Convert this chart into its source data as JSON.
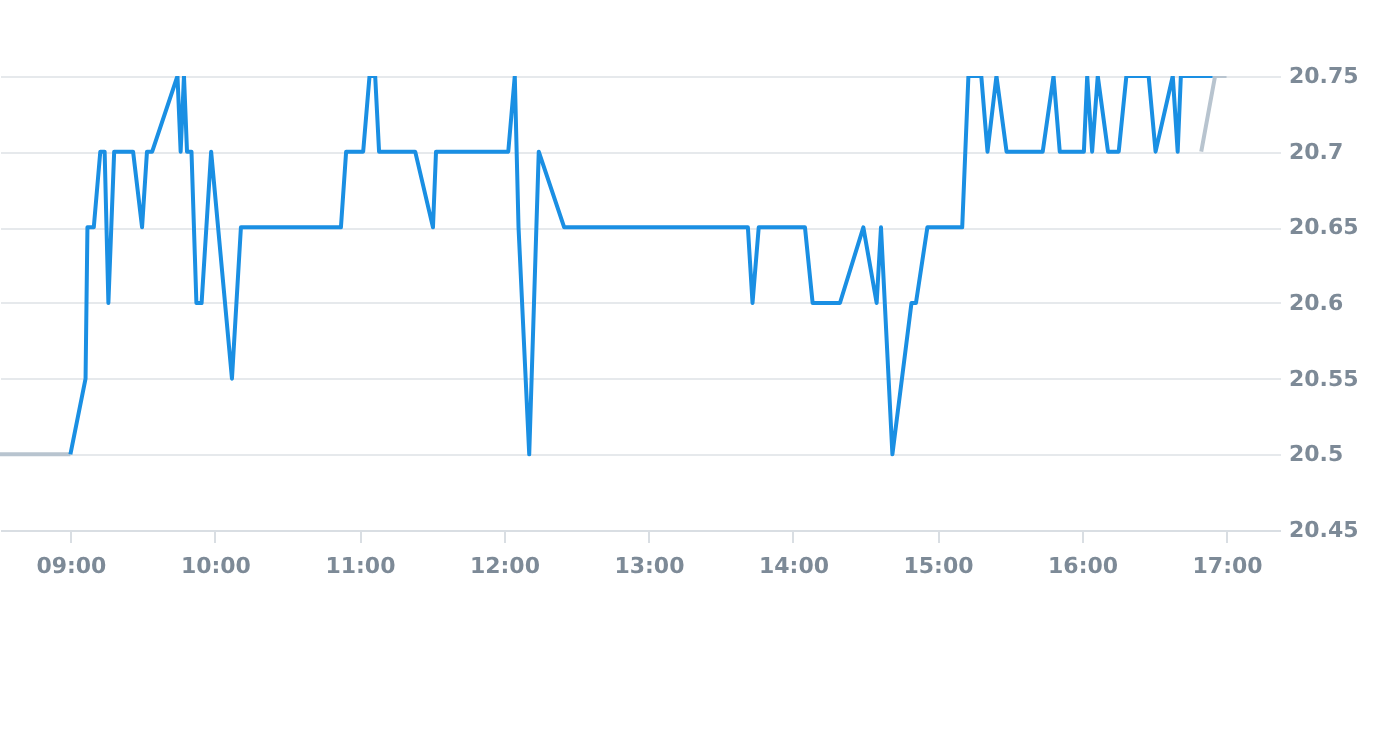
{
  "chart_data": {
    "type": "line",
    "xlim": [
      8.513,
      17.37
    ],
    "ylim": [
      20.45,
      20.75
    ],
    "xticks": [
      {
        "value": 9,
        "label": "09:00"
      },
      {
        "value": 10,
        "label": "10:00"
      },
      {
        "value": 11,
        "label": "11:00"
      },
      {
        "value": 12,
        "label": "12:00"
      },
      {
        "value": 13,
        "label": "13:00"
      },
      {
        "value": 14,
        "label": "14:00"
      },
      {
        "value": 15,
        "label": "15:00"
      },
      {
        "value": 16,
        "label": "16:00"
      },
      {
        "value": 17,
        "label": "17:00"
      }
    ],
    "yticks": [
      20.45,
      20.5,
      20.55,
      20.6,
      20.65,
      20.7,
      20.75
    ],
    "grid": "y",
    "legend": false,
    "marker": "none",
    "line_style": "solid",
    "series": [
      {
        "color": "#b8c4cf",
        "x": [
          8.513,
          9.0
        ],
        "values": [
          20.5,
          20.5
        ]
      },
      {
        "color": "#1a8fe3",
        "x": [
          9.0,
          9.105,
          9.118,
          9.162,
          9.207,
          9.237,
          9.263,
          9.303,
          9.434,
          9.496,
          9.53,
          9.566,
          9.741,
          9.763,
          9.786,
          9.807,
          9.838,
          9.872,
          9.908,
          9.974,
          10.118,
          10.18,
          10.872,
          10.908,
          11.026,
          11.07,
          11.109,
          11.136,
          11.386,
          11.509,
          11.53,
          12.03,
          12.075,
          12.101,
          12.175,
          12.241,
          12.417,
          13.688,
          13.72,
          13.763,
          14.083,
          14.136,
          14.325,
          14.487,
          14.579,
          14.609,
          14.688,
          14.82,
          14.851,
          14.93,
          15.171,
          15.214,
          15.303,
          15.346,
          15.408,
          15.478,
          15.728,
          15.803,
          15.846,
          16.013,
          16.036,
          16.07,
          16.109,
          16.18,
          16.254,
          16.307,
          16.461,
          16.509,
          16.628,
          16.662,
          16.684,
          16.904
        ],
        "values": [
          20.5,
          20.55,
          20.65,
          20.65,
          20.7,
          20.7,
          20.6,
          20.7,
          20.7,
          20.65,
          20.7,
          20.7,
          20.75,
          20.7,
          20.75,
          20.7,
          20.7,
          20.6,
          20.6,
          20.7,
          20.55,
          20.65,
          20.65,
          20.7,
          20.7,
          20.75,
          20.75,
          20.7,
          20.7,
          20.65,
          20.7,
          20.7,
          20.75,
          20.65,
          20.5,
          20.7,
          20.65,
          20.65,
          20.6,
          20.65,
          20.65,
          20.6,
          20.6,
          20.65,
          20.6,
          20.65,
          20.5,
          20.6,
          20.6,
          20.65,
          20.65,
          20.75,
          20.75,
          20.7,
          20.75,
          20.7,
          20.7,
          20.75,
          20.7,
          20.7,
          20.75,
          20.7,
          20.75,
          20.7,
          20.7,
          20.75,
          20.75,
          20.7,
          20.75,
          20.7,
          20.75,
          20.75
        ]
      },
      {
        "color": "#b8c4cf",
        "x": [
          16.825,
          16.921,
          17.0
        ],
        "values": [
          20.7,
          20.75,
          20.75
        ]
      }
    ]
  }
}
